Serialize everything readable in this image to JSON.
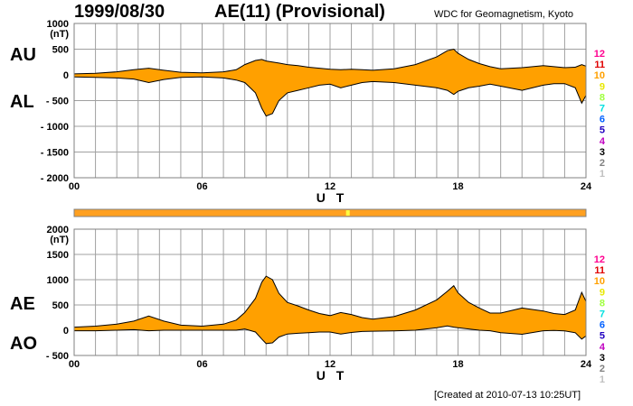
{
  "date": "1999/08/30",
  "title": "AE(11) (Provisional)",
  "source": "WDC for Geomagnetism, Kyoto",
  "created": "[Created at 2010-07-13 10:25UT]",
  "colors": {
    "fill": "#ffa000",
    "outline": "#000000",
    "grid": "#a0a0a0",
    "station_bar": "#ffa020",
    "highlight": "#ffff40"
  },
  "station_legend": [
    {
      "label": "12",
      "color": "#ff0090"
    },
    {
      "label": "11",
      "color": "#e00000"
    },
    {
      "label": "10",
      "color": "#ffa000"
    },
    {
      "label": "9",
      "color": "#e8e800"
    },
    {
      "label": "8",
      "color": "#a0ff40"
    },
    {
      "label": "7",
      "color": "#00e0e0"
    },
    {
      "label": "6",
      "color": "#0060ff"
    },
    {
      "label": "5",
      "color": "#2000c0"
    },
    {
      "label": "4",
      "color": "#c000c0"
    },
    {
      "label": "3",
      "color": "#000000"
    },
    {
      "label": "2",
      "color": "#808080"
    },
    {
      "label": "1",
      "color": "#c0c0c0"
    }
  ],
  "chart_data": [
    {
      "type": "area",
      "panel": "AU/AL",
      "upper_label": "AU",
      "lower_label": "AL",
      "unit": "(nT)",
      "xlabel": "U T",
      "xlim": [
        0,
        24
      ],
      "ylim": [
        -2000,
        1000
      ],
      "x_ticks": [
        "00",
        "06",
        "12",
        "18",
        "24"
      ],
      "y_ticks": [
        "1000",
        "500",
        "0",
        "- 500",
        "- 1000",
        "- 1500",
        "- 2000"
      ],
      "grid": true,
      "x": [
        0,
        1,
        2,
        2.8,
        3.5,
        4.2,
        5,
        6,
        7,
        7.6,
        8,
        8.5,
        8.8,
        9,
        9.3,
        9.6,
        10,
        10.5,
        11,
        11.5,
        12,
        12.5,
        13,
        13.5,
        14,
        15,
        16,
        17,
        17.5,
        17.8,
        18,
        18.5,
        19,
        19.5,
        20,
        21,
        22,
        22.5,
        23,
        23.5,
        23.8,
        24
      ],
      "series": [
        {
          "name": "AU",
          "values": [
            20,
            30,
            60,
            100,
            130,
            90,
            50,
            40,
            60,
            100,
            200,
            280,
            300,
            270,
            250,
            230,
            200,
            180,
            150,
            130,
            110,
            100,
            110,
            100,
            90,
            120,
            200,
            350,
            470,
            500,
            420,
            300,
            220,
            160,
            120,
            140,
            180,
            160,
            140,
            150,
            200,
            170
          ]
        },
        {
          "name": "AL",
          "values": [
            -40,
            -50,
            -60,
            -80,
            -150,
            -90,
            -50,
            -40,
            -60,
            -100,
            -150,
            -350,
            -650,
            -800,
            -750,
            -500,
            -350,
            -300,
            -250,
            -200,
            -180,
            -250,
            -200,
            -150,
            -130,
            -150,
            -200,
            -250,
            -300,
            -380,
            -320,
            -250,
            -220,
            -180,
            -220,
            -300,
            -200,
            -170,
            -170,
            -250,
            -550,
            -400
          ]
        }
      ]
    },
    {
      "type": "area",
      "panel": "AE/AO",
      "upper_label": "AE",
      "lower_label": "AO",
      "unit": "(nT)",
      "xlabel": "U T",
      "xlim": [
        0,
        24
      ],
      "ylim": [
        -500,
        2000
      ],
      "x_ticks": [
        "00",
        "06",
        "12",
        "18",
        "24"
      ],
      "y_ticks": [
        "2000",
        "1500",
        "1000",
        "500",
        "0",
        "- 500"
      ],
      "grid": true,
      "x": [
        0,
        1,
        2,
        2.8,
        3.5,
        4.2,
        5,
        6,
        7,
        7.6,
        8,
        8.5,
        8.8,
        9,
        9.3,
        9.6,
        10,
        10.5,
        11,
        11.5,
        12,
        12.5,
        13,
        13.5,
        14,
        15,
        16,
        17,
        17.5,
        17.8,
        18,
        18.5,
        19,
        19.5,
        20,
        21,
        22,
        22.5,
        23,
        23.5,
        23.8,
        24
      ],
      "series": [
        {
          "name": "AE",
          "values": [
            60,
            80,
            120,
            180,
            280,
            180,
            100,
            80,
            120,
            200,
            350,
            630,
            950,
            1070,
            1000,
            730,
            550,
            480,
            400,
            330,
            290,
            350,
            310,
            250,
            220,
            270,
            400,
            600,
            770,
            880,
            740,
            550,
            440,
            340,
            340,
            440,
            380,
            330,
            310,
            400,
            750,
            570
          ]
        },
        {
          "name": "AO",
          "values": [
            -10,
            -10,
            0,
            10,
            -10,
            0,
            0,
            0,
            0,
            0,
            25,
            -35,
            -175,
            -265,
            -250,
            -135,
            -75,
            -60,
            -50,
            -35,
            -35,
            -75,
            -45,
            -25,
            -20,
            -15,
            0,
            50,
            85,
            60,
            50,
            25,
            0,
            -10,
            -50,
            -80,
            -10,
            -5,
            -15,
            -50,
            -175,
            -115
          ]
        }
      ]
    }
  ]
}
